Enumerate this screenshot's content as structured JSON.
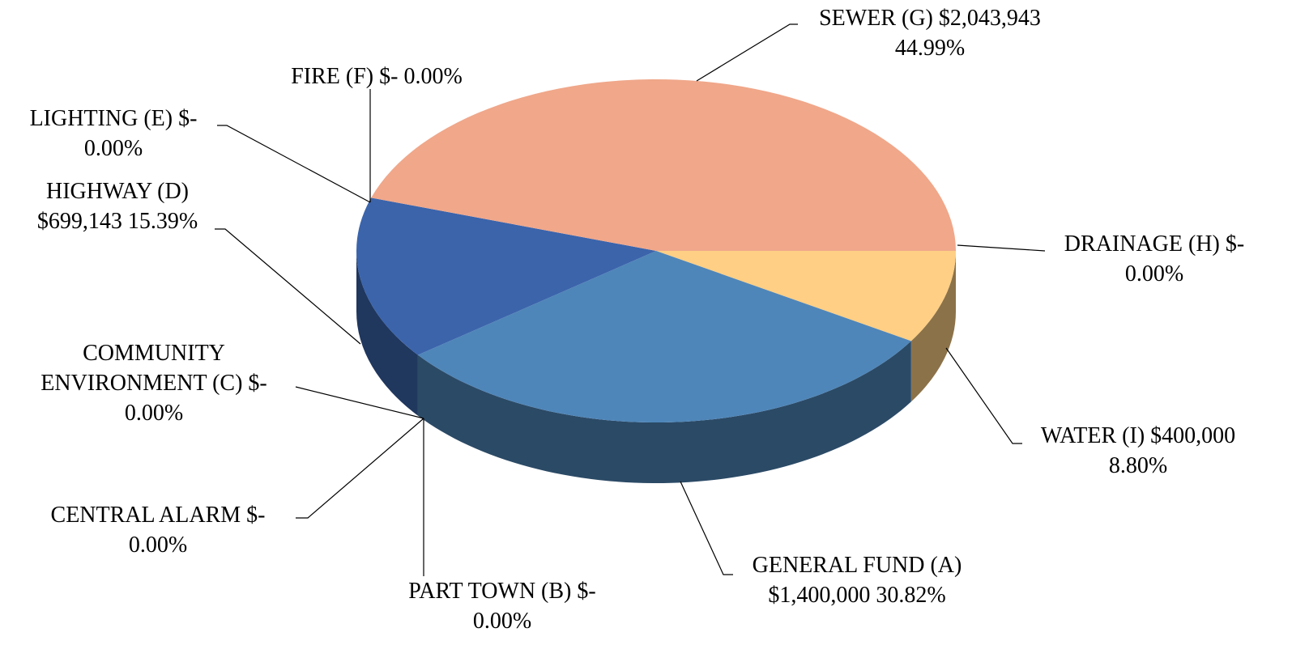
{
  "chart_data": {
    "type": "pie3d",
    "categories": [
      "GENERAL FUND (A)",
      "PART TOWN (B)",
      "COMMUNITY ENVIRONMENT (C)",
      "HIGHWAY (D)",
      "LIGHTING (E)",
      "FIRE (F)",
      "SEWER (G)",
      "DRAINAGE (H)",
      "WATER (I)",
      "CENTRAL ALARM"
    ],
    "values": [
      1400000,
      0,
      0,
      699143,
      0,
      0,
      2043943,
      0,
      400000,
      0
    ],
    "value_labels": [
      "$1,400,000",
      "$-",
      "$-",
      "$699,143",
      "$-",
      "$-",
      "$2,043,943",
      "$-",
      "$400,000",
      "$-"
    ],
    "percents": [
      30.82,
      0,
      0,
      15.39,
      0,
      0,
      44.99,
      0,
      8.8,
      0
    ],
    "percent_labels": [
      "30.82%",
      "0.00%",
      "0.00%",
      "15.39%",
      "0.00%",
      "0.00%",
      "44.99%",
      "0.00%",
      "8.80%",
      "0.00%"
    ],
    "colors": [
      "#4f86b9",
      null,
      null,
      "#3b64ab",
      null,
      null,
      "#f0a78a",
      null,
      "#fecf85",
      null
    ]
  }
}
